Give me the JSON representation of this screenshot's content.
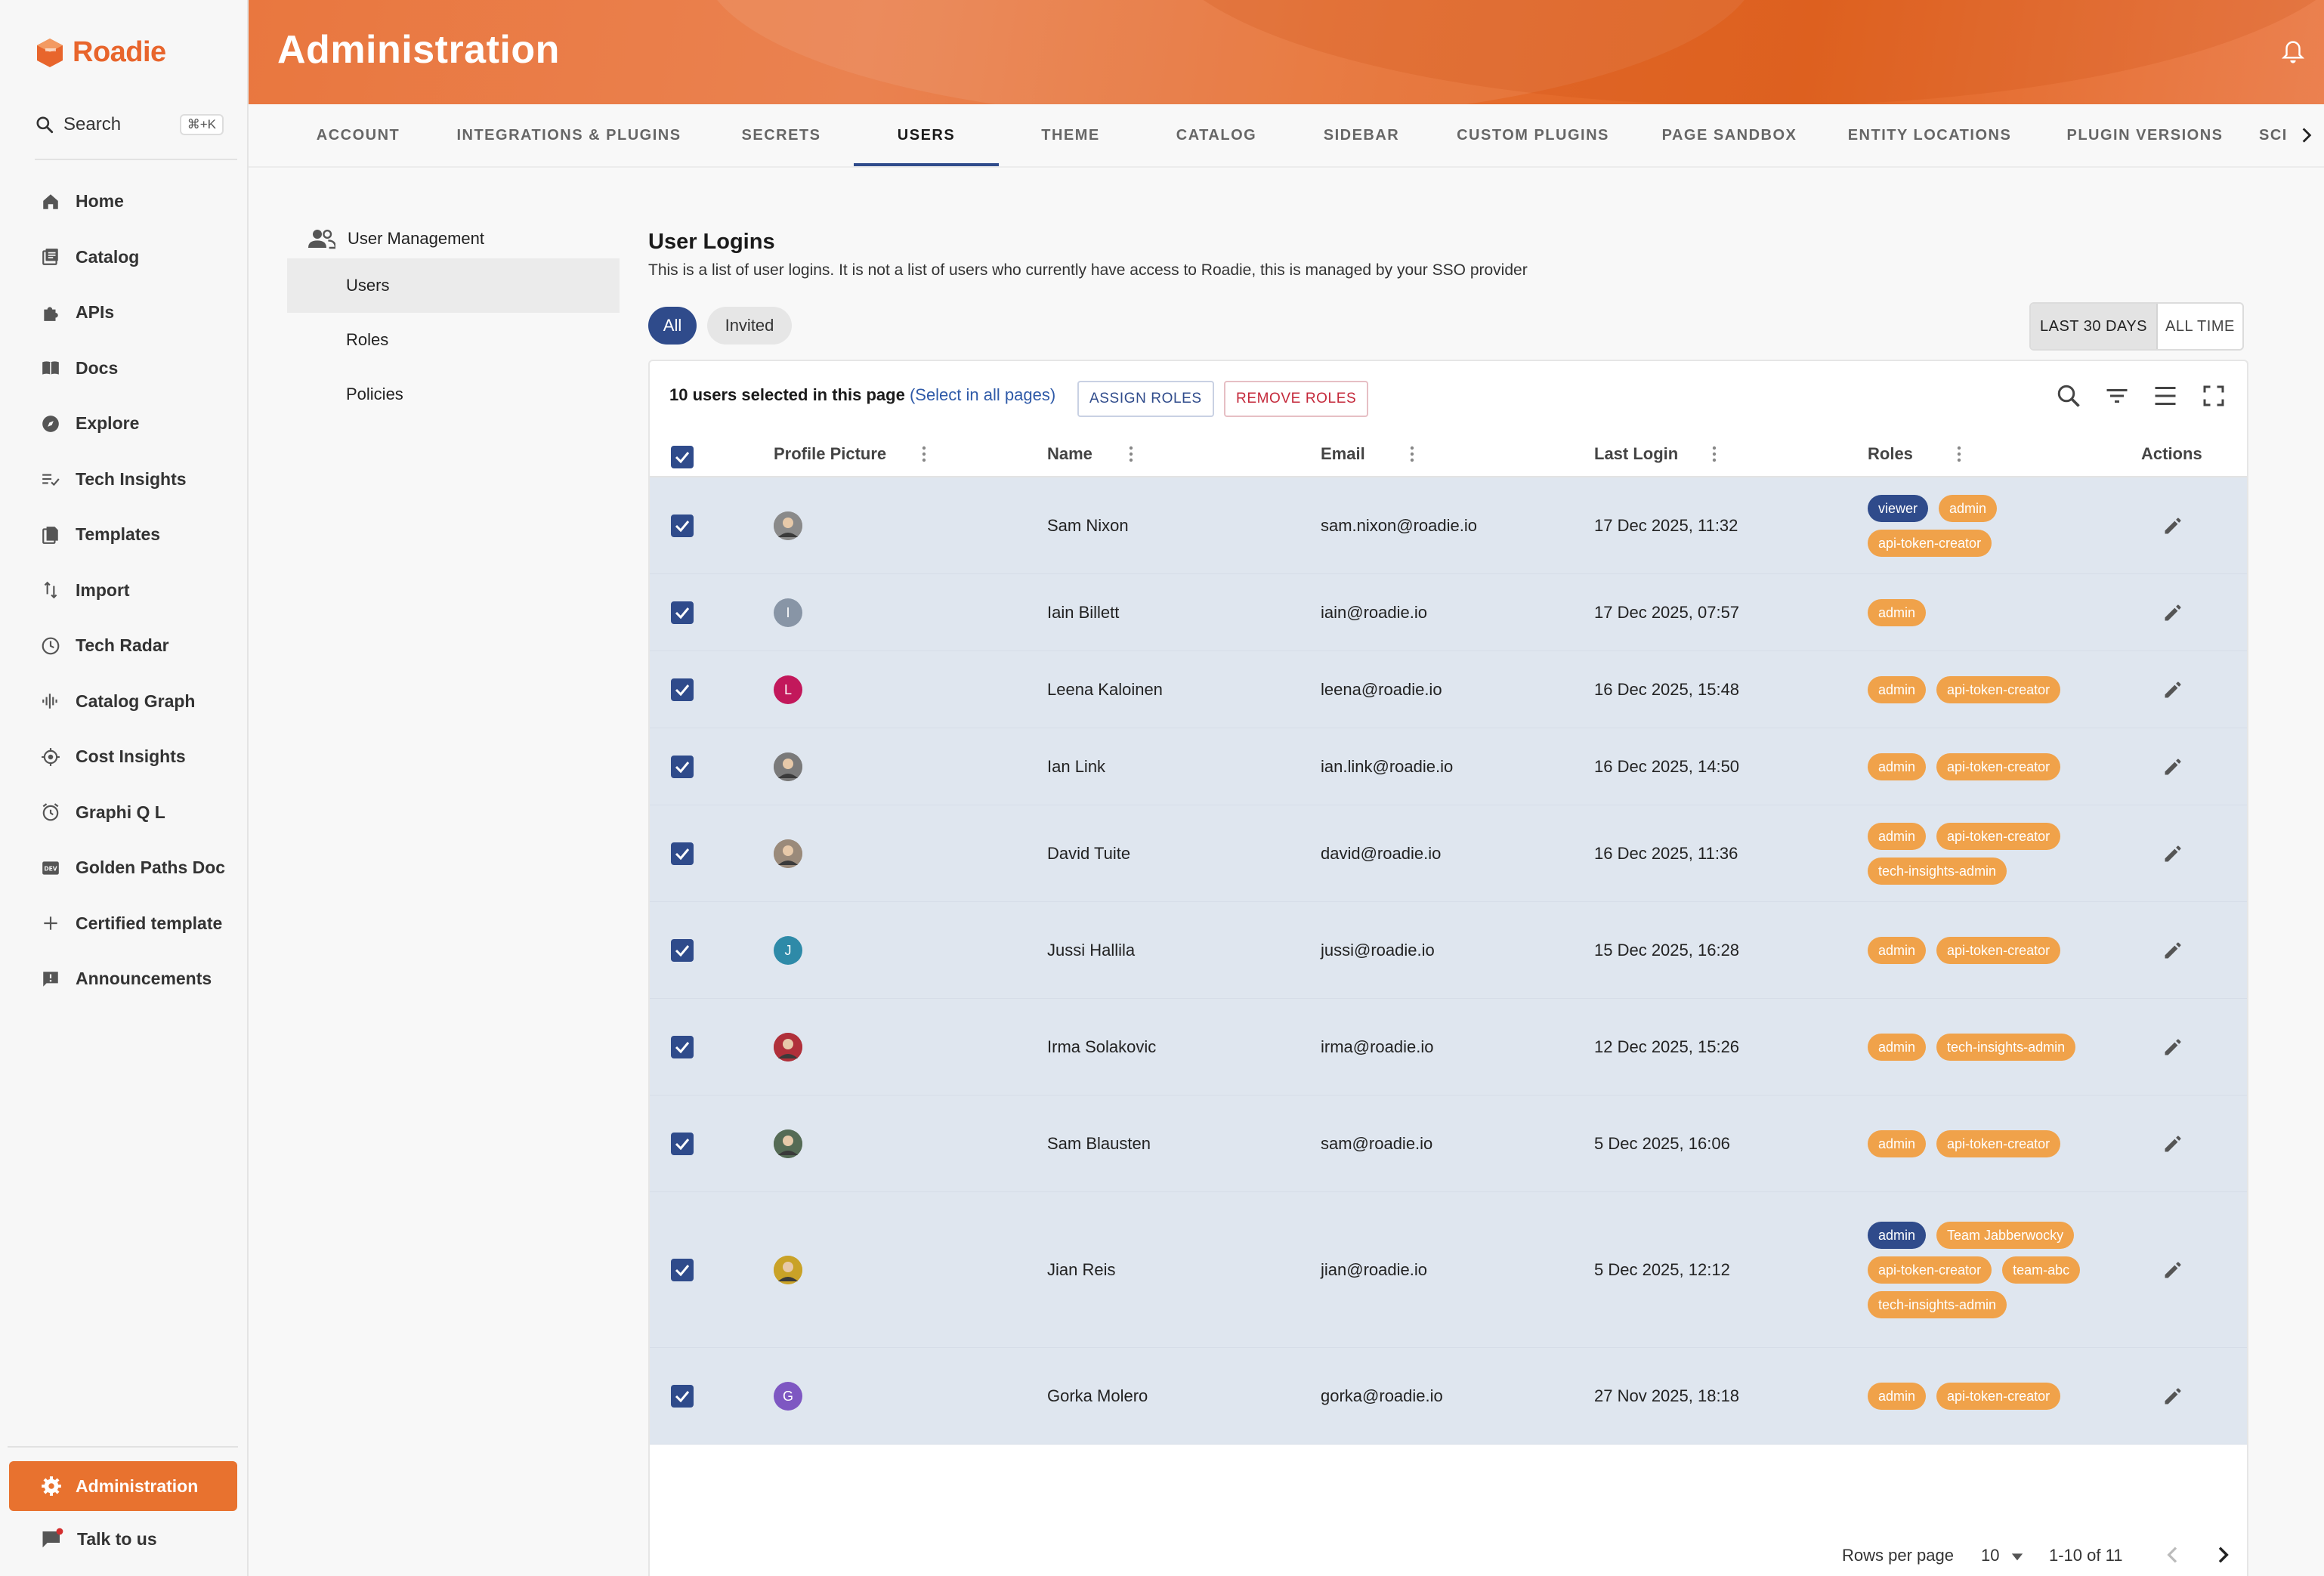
{
  "app": {
    "name": "Roadie"
  },
  "search": {
    "label": "Search",
    "shortcut": "⌘+K"
  },
  "nav": [
    {
      "label": "Home",
      "icon": "home-icon"
    },
    {
      "label": "Catalog",
      "icon": "catalog-icon"
    },
    {
      "label": "APIs",
      "icon": "puzzle-icon"
    },
    {
      "label": "Docs",
      "icon": "book-icon"
    },
    {
      "label": "Explore",
      "icon": "compass-icon"
    },
    {
      "label": "Tech Insights",
      "icon": "checklist-icon"
    },
    {
      "label": "Templates",
      "icon": "templates-icon"
    },
    {
      "label": "Import",
      "icon": "import-icon"
    },
    {
      "label": "Tech Radar",
      "icon": "radar-icon"
    },
    {
      "label": "Catalog Graph",
      "icon": "graph-icon"
    },
    {
      "label": "Cost Insights",
      "icon": "target-icon"
    },
    {
      "label": "Graphi Q L",
      "icon": "alarm-icon"
    },
    {
      "label": "Golden Paths Doc",
      "icon": "dev-icon"
    },
    {
      "label": "Certified template",
      "icon": "plus-icon"
    },
    {
      "label": "Announcements",
      "icon": "announcement-icon"
    }
  ],
  "bottom": {
    "admin_label": "Administration",
    "talk_label": "Talk to us"
  },
  "header": {
    "title": "Administration"
  },
  "tabs": [
    {
      "label": "ACCOUNT"
    },
    {
      "label": "INTEGRATIONS & PLUGINS"
    },
    {
      "label": "SECRETS"
    },
    {
      "label": "USERS"
    },
    {
      "label": "THEME"
    },
    {
      "label": "CATALOG"
    },
    {
      "label": "SIDEBAR"
    },
    {
      "label": "CUSTOM PLUGINS"
    },
    {
      "label": "PAGE SANDBOX"
    },
    {
      "label": "ENTITY LOCATIONS"
    },
    {
      "label": "PLUGIN VERSIONS"
    },
    {
      "label": "SCI"
    }
  ],
  "subnav": {
    "heading": "User Management",
    "items": [
      {
        "label": "Users"
      },
      {
        "label": "Roles"
      },
      {
        "label": "Policies"
      }
    ]
  },
  "main": {
    "title": "User Logins",
    "description": "This is a list of user logins. It is not a list of users who currently have access to Roadie, this is managed by your SSO provider",
    "filter_all": "All",
    "filter_invited": "Invited",
    "range_30": "LAST 30 DAYS",
    "range_all": "ALL TIME"
  },
  "toolbar": {
    "selected_text": "10 users selected in this page",
    "select_all_link": "(Select in all pages)",
    "assign_label": "ASSIGN ROLES",
    "remove_label": "REMOVE ROLES"
  },
  "columns": {
    "picture": "Profile Picture",
    "name": "Name",
    "email": "Email",
    "last_login": "Last Login",
    "roles": "Roles",
    "actions": "Actions"
  },
  "rows": [
    {
      "name": "Sam Nixon",
      "email": "sam.nixon@roadie.io",
      "last_login": "17 Dec 2025, 11:32",
      "avatar": "photo",
      "avatar_color": "#8a8a8a",
      "initial": "",
      "roles": [
        {
          "label": "viewer",
          "style": "blue"
        },
        {
          "label": "admin",
          "style": "orange"
        },
        {
          "label": "api-token-creator",
          "style": "orange"
        }
      ]
    },
    {
      "name": "Iain Billett",
      "email": "iain@roadie.io",
      "last_login": "17 Dec 2025, 07:57",
      "avatar": "initial",
      "avatar_color": "#8895a6",
      "initial": "I",
      "roles": [
        {
          "label": "admin",
          "style": "orange"
        }
      ]
    },
    {
      "name": "Leena Kaloinen",
      "email": "leena@roadie.io",
      "last_login": "16 Dec 2025, 15:48",
      "avatar": "initial",
      "avatar_color": "#c2185b",
      "initial": "L",
      "roles": [
        {
          "label": "admin",
          "style": "orange"
        },
        {
          "label": "api-token-creator",
          "style": "orange"
        }
      ]
    },
    {
      "name": "Ian Link",
      "email": "ian.link@roadie.io",
      "last_login": "16 Dec 2025, 14:50",
      "avatar": "photo",
      "avatar_color": "#7a7a7a",
      "initial": "",
      "roles": [
        {
          "label": "admin",
          "style": "orange"
        },
        {
          "label": "api-token-creator",
          "style": "orange"
        }
      ]
    },
    {
      "name": "David Tuite",
      "email": "david@roadie.io",
      "last_login": "16 Dec 2025, 11:36",
      "avatar": "photo",
      "avatar_color": "#9a8a7a",
      "initial": "",
      "roles": [
        {
          "label": "admin",
          "style": "orange"
        },
        {
          "label": "api-token-creator",
          "style": "orange"
        },
        {
          "label": "tech-insights-admin",
          "style": "orange"
        }
      ]
    },
    {
      "name": "Jussi Hallila",
      "email": "jussi@roadie.io",
      "last_login": "15 Dec 2025, 16:28",
      "avatar": "initial",
      "avatar_color": "#2e8aa8",
      "initial": "J",
      "roles": [
        {
          "label": "admin",
          "style": "orange"
        },
        {
          "label": "api-token-creator",
          "style": "orange"
        }
      ]
    },
    {
      "name": "Irma Solakovic",
      "email": "irma@roadie.io",
      "last_login": "12 Dec 2025, 15:26",
      "avatar": "photo",
      "avatar_color": "#b0303a",
      "initial": "",
      "roles": [
        {
          "label": "admin",
          "style": "orange"
        },
        {
          "label": "tech-insights-admin",
          "style": "orange"
        }
      ]
    },
    {
      "name": "Sam Blausten",
      "email": "sam@roadie.io",
      "last_login": "5 Dec 2025, 16:06",
      "avatar": "photo",
      "avatar_color": "#556b55",
      "initial": "",
      "roles": [
        {
          "label": "admin",
          "style": "orange"
        },
        {
          "label": "api-token-creator",
          "style": "orange"
        }
      ]
    },
    {
      "name": "Jian Reis",
      "email": "jian@roadie.io",
      "last_login": "5 Dec 2025, 12:12",
      "avatar": "photo",
      "avatar_color": "#c9a227",
      "initial": "",
      "roles": [
        {
          "label": "admin",
          "style": "blue"
        },
        {
          "label": "Team Jabberwocky",
          "style": "orange"
        },
        {
          "label": "api-token-creator",
          "style": "orange"
        },
        {
          "label": "team-abc",
          "style": "orange"
        },
        {
          "label": "tech-insights-admin",
          "style": "orange"
        }
      ]
    },
    {
      "name": "Gorka Molero",
      "email": "gorka@roadie.io",
      "last_login": "27 Nov 2025, 18:18",
      "avatar": "initial",
      "avatar_color": "#7e57c2",
      "initial": "G",
      "roles": [
        {
          "label": "admin",
          "style": "orange"
        },
        {
          "label": "api-token-creator",
          "style": "orange"
        }
      ]
    }
  ],
  "pagination": {
    "rows_label": "Rows per page",
    "rows_value": "10",
    "range": "1-10 of 11"
  },
  "colors": {
    "accent": "#e8722f",
    "primary": "#2f4b8b",
    "selected_row": "#dfe6ef",
    "role_orange": "#f0a24a"
  }
}
